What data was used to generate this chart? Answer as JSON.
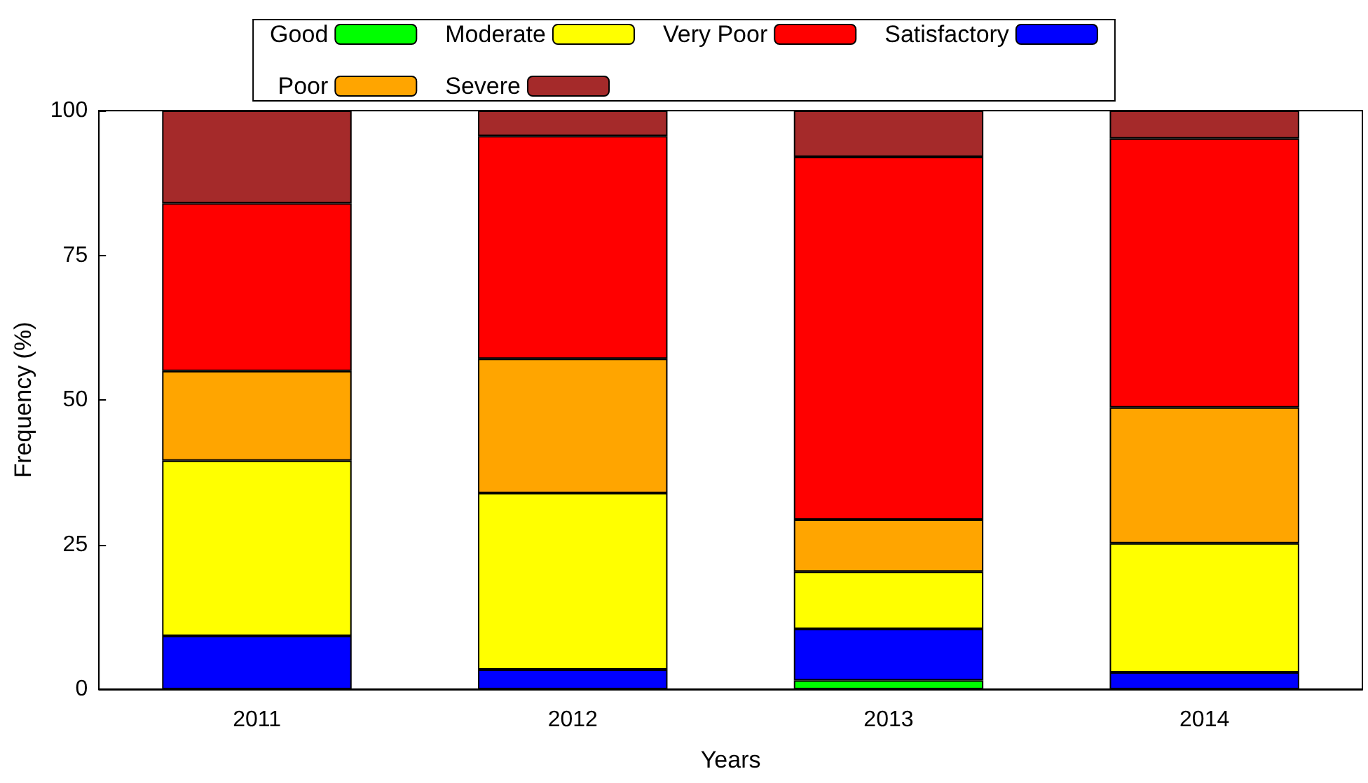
{
  "chart_data": {
    "type": "bar",
    "stacked": true,
    "xlabel": "Years",
    "ylabel": "Frequency (%)",
    "categories": [
      "2011",
      "2012",
      "2013",
      "2014"
    ],
    "series": [
      {
        "name": "Good",
        "color": "#00ff00",
        "values": [
          0,
          0,
          1.5,
          0
        ]
      },
      {
        "name": "Satisfactory",
        "color": "#0000ff",
        "values": [
          9.2,
          3.4,
          8.9,
          2.9
        ]
      },
      {
        "name": "Moderate",
        "color": "#ffff00",
        "values": [
          30.3,
          30.5,
          9.9,
          22.3
        ]
      },
      {
        "name": "Poor",
        "color": "#ffa500",
        "values": [
          15.5,
          23.2,
          9,
          23.5
        ]
      },
      {
        "name": "Very Poor",
        "color": "#ff0000",
        "values": [
          29,
          38.5,
          62.7,
          46.5
        ]
      },
      {
        "name": "Severe",
        "color": "#a52a2a",
        "values": [
          16,
          4.4,
          8,
          4.8
        ]
      }
    ],
    "ylim": [
      0,
      100
    ],
    "yticks": [
      0,
      25,
      50,
      75,
      100
    ],
    "grid": false,
    "legend": "top"
  }
}
